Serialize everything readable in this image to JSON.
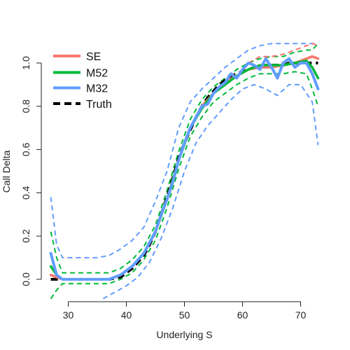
{
  "chart_data": {
    "type": "line",
    "xlabel": "Underlying S",
    "ylabel": "Call Delta",
    "xlim": [
      26.5,
      73.5
    ],
    "ylim": [
      -0.07,
      1.09
    ],
    "x_ticks": [
      30,
      40,
      50,
      60,
      70
    ],
    "y_ticks": [
      0.0,
      0.2,
      0.4,
      0.6,
      0.8,
      1.0
    ],
    "x_tick_labels": [
      "30",
      "40",
      "50",
      "60",
      "70"
    ],
    "y_tick_labels": [
      "0.0",
      "0.2",
      "0.4",
      "0.6",
      "0.8",
      "1.0"
    ],
    "grid": false,
    "legend_position": "top-left",
    "legend": [
      {
        "label": "SE",
        "color": "#F8766D",
        "style": "solid"
      },
      {
        "label": "M52",
        "color": "#00BA38",
        "style": "solid"
      },
      {
        "label": "M32",
        "color": "#619CFF",
        "style": "solid"
      },
      {
        "label": "Truth",
        "color": "#000000",
        "style": "dashed"
      }
    ],
    "series": [
      {
        "name": "Truth",
        "color": "#000000",
        "style": "dashed",
        "x": [
          27,
          29,
          31,
          33,
          35,
          37,
          39,
          40,
          41,
          42,
          43,
          44,
          45,
          46,
          47,
          48,
          49,
          50,
          51,
          52,
          53,
          54,
          55,
          56,
          57,
          58,
          59,
          60,
          61,
          62,
          63,
          64,
          65,
          66,
          67,
          68,
          69,
          70,
          71,
          72,
          73
        ],
        "y": [
          0.0,
          0.0,
          0.0,
          0.0,
          0.0,
          0.0,
          0.01,
          0.03,
          0.05,
          0.08,
          0.11,
          0.16,
          0.22,
          0.3,
          0.38,
          0.47,
          0.56,
          0.63,
          0.69,
          0.75,
          0.8,
          0.84,
          0.87,
          0.9,
          0.92,
          0.94,
          0.95,
          0.96,
          0.97,
          0.98,
          0.98,
          0.99,
          0.99,
          0.99,
          0.99,
          1.0,
          1.0,
          1.0,
          1.0,
          1.0,
          1.0
        ]
      },
      {
        "name": "SE",
        "color": "#F8766D",
        "style": "solid",
        "x": [
          27,
          28,
          29,
          31,
          33,
          35,
          37,
          39,
          41,
          43,
          45,
          47,
          49,
          51,
          53,
          55,
          57,
          59,
          61,
          63,
          65,
          67,
          69,
          71,
          72,
          73
        ],
        "y": [
          0.02,
          0.01,
          0.0,
          0.0,
          0.0,
          0.0,
          0.0,
          0.02,
          0.06,
          0.12,
          0.22,
          0.37,
          0.55,
          0.7,
          0.8,
          0.86,
          0.91,
          0.94,
          0.97,
          0.98,
          0.98,
          0.99,
          1.0,
          1.02,
          1.03,
          1.02
        ]
      },
      {
        "name": "SE upper",
        "color": "#F8766D",
        "style": "dashed",
        "x": [
          61,
          63,
          65,
          67,
          69,
          71,
          72,
          73
        ],
        "y": [
          1.0,
          1.03,
          1.03,
          1.04,
          1.06,
          1.08,
          1.09,
          1.08
        ]
      },
      {
        "name": "M52",
        "color": "#00BA38",
        "style": "solid",
        "x": [
          27,
          28,
          29,
          31,
          33,
          35,
          37,
          39,
          41,
          43,
          45,
          47,
          49,
          51,
          53,
          55,
          57,
          59,
          61,
          63,
          65,
          67,
          69,
          71,
          72,
          73
        ],
        "y": [
          0.06,
          0.02,
          0.0,
          0.0,
          0.0,
          0.0,
          0.0,
          0.02,
          0.06,
          0.12,
          0.22,
          0.37,
          0.55,
          0.7,
          0.79,
          0.86,
          0.9,
          0.94,
          0.97,
          0.99,
          0.99,
          0.99,
          1.0,
          1.01,
          0.98,
          0.93
        ]
      },
      {
        "name": "M52 upper",
        "color": "#00BA38",
        "style": "dashed",
        "x": [
          27,
          28,
          29,
          31,
          33,
          35,
          37,
          39,
          41,
          43,
          45,
          47,
          49,
          51,
          53,
          55,
          57,
          59,
          61,
          63,
          65,
          67,
          69,
          71,
          72,
          73
        ],
        "y": [
          0.22,
          0.1,
          0.03,
          0.03,
          0.03,
          0.03,
          0.03,
          0.05,
          0.09,
          0.15,
          0.25,
          0.41,
          0.59,
          0.74,
          0.83,
          0.89,
          0.93,
          0.97,
          1.0,
          1.02,
          1.03,
          1.03,
          1.05,
          1.06,
          1.06,
          1.09
        ]
      },
      {
        "name": "M52 lower",
        "color": "#00BA38",
        "style": "dashed",
        "x": [
          27,
          28,
          29,
          31,
          33,
          35,
          37,
          39,
          41,
          43,
          45,
          47,
          49,
          51,
          53,
          55,
          57,
          59,
          61,
          63,
          65,
          67,
          69,
          71,
          72,
          73
        ],
        "y": [
          -0.09,
          -0.05,
          -0.02,
          -0.02,
          -0.02,
          -0.02,
          -0.02,
          0.0,
          0.03,
          0.09,
          0.18,
          0.33,
          0.51,
          0.66,
          0.75,
          0.82,
          0.86,
          0.9,
          0.93,
          0.95,
          0.95,
          0.95,
          0.96,
          0.95,
          0.88,
          0.8
        ]
      },
      {
        "name": "M32",
        "color": "#619CFF",
        "style": "solid",
        "x": [
          27,
          28,
          29,
          31,
          33,
          35,
          37,
          39,
          41,
          43,
          45,
          46,
          47,
          48,
          49,
          50,
          51,
          52,
          53,
          54,
          55,
          56,
          57,
          58,
          59,
          60,
          61,
          62,
          63,
          64,
          65,
          66,
          67,
          68,
          69,
          70,
          71,
          72,
          73
        ],
        "y": [
          0.12,
          0.02,
          0.0,
          0.0,
          0.0,
          0.0,
          0.0,
          0.02,
          0.06,
          0.12,
          0.22,
          0.3,
          0.37,
          0.45,
          0.55,
          0.63,
          0.7,
          0.75,
          0.8,
          0.81,
          0.86,
          0.89,
          0.91,
          0.95,
          0.93,
          0.97,
          1.0,
          0.99,
          0.97,
          1.02,
          0.98,
          0.93,
          1.0,
          1.02,
          0.98,
          1.0,
          1.0,
          0.95,
          0.88
        ]
      },
      {
        "name": "M32 upper",
        "color": "#619CFF",
        "style": "dashed",
        "x": [
          27,
          28,
          29,
          31,
          33,
          35,
          37,
          39,
          41,
          43,
          45,
          47,
          49,
          51,
          53,
          55,
          57,
          59,
          61,
          63,
          65,
          67,
          69,
          71,
          72,
          73
        ],
        "y": [
          0.38,
          0.16,
          0.1,
          0.1,
          0.1,
          0.1,
          0.11,
          0.14,
          0.18,
          0.24,
          0.36,
          0.5,
          0.7,
          0.82,
          0.88,
          0.93,
          0.98,
          1.02,
          1.06,
          1.08,
          1.09,
          1.09,
          1.09,
          1.09,
          1.09,
          1.09
        ]
      },
      {
        "name": "M32 lower",
        "color": "#619CFF",
        "style": "dashed",
        "x": [
          36,
          38,
          40,
          42,
          44,
          46,
          48,
          50,
          52,
          54,
          56,
          58,
          60,
          62,
          64,
          66,
          68,
          70,
          72,
          73
        ],
        "y": [
          -0.09,
          -0.06,
          -0.03,
          0.01,
          0.08,
          0.19,
          0.33,
          0.5,
          0.63,
          0.71,
          0.77,
          0.83,
          0.88,
          0.9,
          0.88,
          0.85,
          0.9,
          0.9,
          0.82,
          0.62
        ]
      }
    ]
  }
}
